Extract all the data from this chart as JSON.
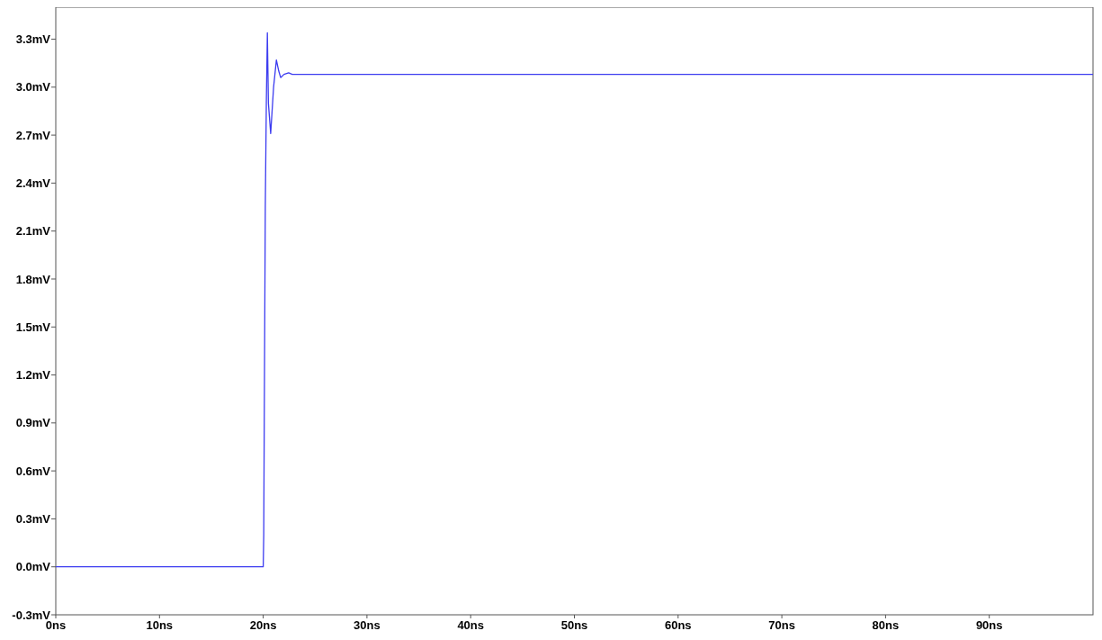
{
  "chart_data": {
    "type": "line",
    "x": [
      0,
      20,
      20.05,
      20.1,
      20.2,
      20.3,
      20.4,
      20.5,
      20.72,
      21.0,
      21.27,
      21.5,
      21.68,
      22.0,
      22.45,
      22.8,
      100
    ],
    "series": [
      {
        "color": "#3c3cf0",
        "values": [
          0,
          0,
          0.2,
          0.9,
          2.25,
          2.9,
          3.34,
          2.9,
          2.71,
          3.0,
          3.17,
          3.1,
          3.06,
          3.08,
          3.09,
          3.08,
          3.08
        ]
      }
    ],
    "xlim": [
      0,
      100
    ],
    "ylim": [
      -0.3,
      3.5
    ],
    "xticks": [
      {
        "value": 0,
        "label": "0ns"
      },
      {
        "value": 10,
        "label": "10ns"
      },
      {
        "value": 20,
        "label": "20ns"
      },
      {
        "value": 30,
        "label": "30ns"
      },
      {
        "value": 40,
        "label": "40ns"
      },
      {
        "value": 50,
        "label": "50ns"
      },
      {
        "value": 60,
        "label": "60ns"
      },
      {
        "value": 70,
        "label": "70ns"
      },
      {
        "value": 80,
        "label": "80ns"
      },
      {
        "value": 90,
        "label": "90ns"
      }
    ],
    "yticks": [
      {
        "value": -0.3,
        "label": "-0.3mV"
      },
      {
        "value": 0,
        "label": "0.0mV"
      },
      {
        "value": 0.3,
        "label": "0.3mV"
      },
      {
        "value": 0.6,
        "label": "0.6mV"
      },
      {
        "value": 0.9,
        "label": "0.9mV"
      },
      {
        "value": 1.2,
        "label": "1.2mV"
      },
      {
        "value": 1.5,
        "label": "1.5mV"
      },
      {
        "value": 1.8,
        "label": "1.8mV"
      },
      {
        "value": 2.1,
        "label": "2.1mV"
      },
      {
        "value": 2.4,
        "label": "2.4mV"
      },
      {
        "value": 2.7,
        "label": "2.7mV"
      },
      {
        "value": 3.0,
        "label": "3.0mV"
      },
      {
        "value": 3.3,
        "label": "3.3mV"
      }
    ],
    "marker": "none",
    "line_style": "solid"
  }
}
